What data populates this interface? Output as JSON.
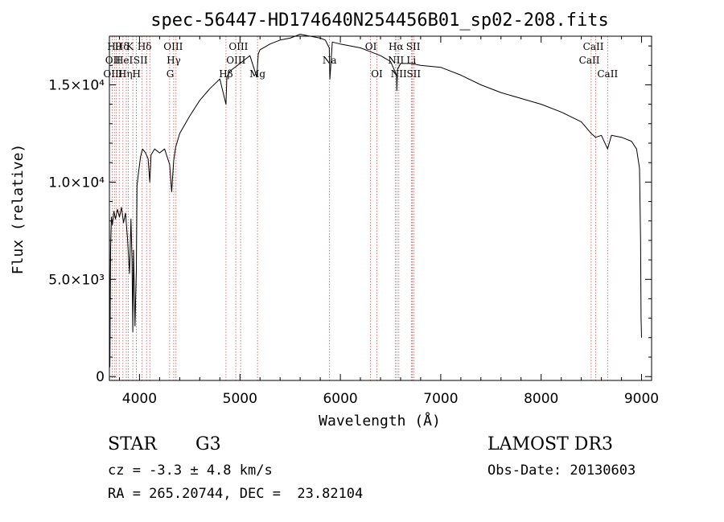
{
  "chart_data": {
    "type": "line",
    "title": "spec-56447-HD174640N254456B01_sp02-208.fits",
    "xlabel": "Wavelength (Å)",
    "ylabel": "Flux (relative)",
    "xlim": [
      3700,
      9100
    ],
    "ylim": [
      -200,
      17500
    ],
    "x_ticks": [
      4000,
      5000,
      6000,
      7000,
      8000,
      9000
    ],
    "x_tick_labels": [
      "4000",
      "5000",
      "6000",
      "7000",
      "8000",
      "9000"
    ],
    "y_ticks": [
      0,
      5000,
      10000,
      15000
    ],
    "y_tick_labels": [
      "0",
      "5.0×10³",
      "1.0×10⁴",
      "1.5×10⁴"
    ],
    "grid": false,
    "series": [
      {
        "color": "#000000",
        "x": [
          3700,
          3705,
          3712,
          3720,
          3730,
          3745,
          3760,
          3780,
          3800,
          3820,
          3840,
          3860,
          3880,
          3900,
          3915,
          3925,
          3933,
          3940,
          3955,
          3968,
          3975,
          3990,
          4010,
          4030,
          4060,
          4085,
          4102,
          4115,
          4150,
          4200,
          4250,
          4300,
          4320,
          4340,
          4360,
          4400,
          4500,
          4600,
          4700,
          4800,
          4861,
          4870,
          4900,
          5000,
          5100,
          5168,
          5183,
          5200,
          5300,
          5400,
          5500,
          5600,
          5700,
          5800,
          5850,
          5890,
          5896,
          5920,
          6000,
          6100,
          6200,
          6300,
          6400,
          6500,
          6560,
          6563,
          6570,
          6600,
          6700,
          6800,
          7000,
          7200,
          7400,
          7600,
          7800,
          8000,
          8200,
          8400,
          8498,
          8542,
          8600,
          8662,
          8700,
          8800,
          8900,
          8950,
          8980,
          8990,
          8995,
          9000
        ],
        "values": [
          8200,
          500,
          6600,
          8200,
          7800,
          8500,
          8100,
          8600,
          8200,
          8700,
          7900,
          8400,
          7100,
          5300,
          8100,
          6000,
          2300,
          6500,
          2600,
          5500,
          9800,
          10500,
          11300,
          11700,
          11500,
          11200,
          10000,
          11400,
          11700,
          11500,
          11700,
          10900,
          9500,
          11100,
          11800,
          12500,
          13400,
          14200,
          14800,
          15300,
          14000,
          15400,
          15700,
          16100,
          16500,
          15400,
          16600,
          16800,
          17100,
          17300,
          17400,
          17600,
          17500,
          17400,
          17300,
          16900,
          15300,
          17200,
          17100,
          17000,
          16900,
          16700,
          16500,
          16200,
          15500,
          14700,
          15800,
          16100,
          16100,
          16000,
          15900,
          15500,
          15000,
          14600,
          14300,
          14000,
          13600,
          13100,
          12500,
          12300,
          12400,
          11700,
          12400,
          12300,
          12100,
          11700,
          10700,
          7000,
          3000,
          2000
        ]
      }
    ],
    "lines": {
      "positions": [
        3727,
        3750,
        3770,
        3798,
        3835,
        3868,
        3889,
        3933,
        3968,
        4026,
        4070,
        4102,
        4300,
        4340,
        4363,
        4861,
        4959,
        5007,
        5175,
        5893,
        6300,
        6364,
        6548,
        6563,
        6583,
        6707,
        6717,
        6731,
        8498,
        8542,
        8662
      ],
      "color": "#d05050",
      "labels": [
        {
          "text": "Hθ",
          "x": 3750,
          "row": 0
        },
        {
          "text": "Hδ",
          "x": 3825,
          "row": 0
        },
        {
          "text": "K",
          "x": 3905,
          "row": 0
        },
        {
          "text": "Hδ",
          "x": 4050,
          "row": 0
        },
        {
          "text": "OIII",
          "x": 4335,
          "row": 0
        },
        {
          "text": "OIII",
          "x": 4985,
          "row": 0
        },
        {
          "text": "OI",
          "x": 6305,
          "row": 0
        },
        {
          "text": "Hα",
          "x": 6555,
          "row": 0
        },
        {
          "text": "SII",
          "x": 6725,
          "row": 0
        },
        {
          "text": "CaII",
          "x": 8520,
          "row": 0
        },
        {
          "text": "OII",
          "x": 3735,
          "row": 1
        },
        {
          "text": "HeI",
          "x": 3845,
          "row": 1
        },
        {
          "text": "SII",
          "x": 4010,
          "row": 1
        },
        {
          "text": "Hγ",
          "x": 4340,
          "row": 1
        },
        {
          "text": "OIII",
          "x": 4960,
          "row": 1
        },
        {
          "text": "Na",
          "x": 5893,
          "row": 1
        },
        {
          "text": "NII",
          "x": 6555,
          "row": 1
        },
        {
          "text": "Li",
          "x": 6707,
          "row": 1
        },
        {
          "text": "CaII",
          "x": 8480,
          "row": 1
        },
        {
          "text": "OIII",
          "x": 3735,
          "row": 2
        },
        {
          "text": "Hη",
          "x": 3858,
          "row": 2
        },
        {
          "text": "H",
          "x": 3970,
          "row": 2
        },
        {
          "text": "G",
          "x": 4305,
          "row": 2
        },
        {
          "text": "Hβ",
          "x": 4861,
          "row": 2
        },
        {
          "text": "Mg",
          "x": 5175,
          "row": 2
        },
        {
          "text": "OI",
          "x": 6364,
          "row": 2
        },
        {
          "text": "NII",
          "x": 6583,
          "row": 2
        },
        {
          "text": "SII",
          "x": 6731,
          "row": 2
        },
        {
          "text": "CaII",
          "x": 8662,
          "row": 2
        }
      ]
    }
  },
  "info": {
    "object_class": "STAR",
    "subclass": "G3",
    "survey": "LAMOST DR3",
    "redshift": "cz = -3.3 ± 4.8 km/s",
    "obs_date": "Obs-Date: 20130603",
    "coords": "RA = 265.20744, DEC =  23.82104"
  }
}
